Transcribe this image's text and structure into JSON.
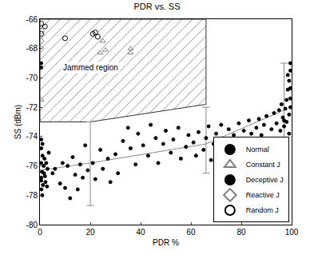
{
  "chart_data": {
    "type": "scatter",
    "title": "PDR vs. SS",
    "x_label": "PDR %",
    "y_label": "SS (dBm)",
    "xlim": [
      0,
      100
    ],
    "xticks": [
      0,
      20,
      40,
      60,
      80,
      100
    ],
    "ylim": [
      -80,
      -66
    ],
    "yticks": [
      -80,
      -78,
      -76,
      -74,
      -72,
      -70,
      -68,
      -66
    ],
    "grid": false,
    "legend": "bottom-right",
    "series": [
      {
        "name": "Normal",
        "color": "#000000",
        "marker": "circle",
        "x": [
          0.5,
          0.5,
          1,
          0.5,
          1.5,
          0.8,
          2,
          0.5,
          1.2,
          0.6,
          1.8,
          2.5,
          3,
          0.5,
          1,
          2.2,
          0.9,
          1.6,
          3.5,
          2.8,
          5,
          6,
          8,
          9,
          10,
          11,
          12,
          13,
          14,
          15,
          16,
          17,
          18,
          19,
          21,
          22,
          24,
          25,
          27,
          28,
          30,
          31,
          33,
          35,
          36,
          38,
          39,
          41,
          43,
          44,
          46,
          47,
          49,
          50,
          52,
          53,
          55,
          56,
          58,
          59,
          61,
          62,
          63,
          65,
          66,
          67,
          68,
          69,
          70,
          71,
          72,
          73,
          74,
          75,
          76,
          77,
          78,
          79,
          80,
          81,
          82,
          83,
          84,
          85,
          86,
          87,
          88,
          89,
          90,
          92,
          93,
          94,
          95,
          95.5,
          96,
          96.5,
          97,
          97.5,
          98,
          98,
          98.5,
          99,
          99,
          99.5,
          99.5,
          99.5,
          99.5,
          99,
          97,
          99.5,
          98.5
        ],
        "y": [
          -74.2,
          -74.8,
          -75.3,
          -75.8,
          -76,
          -76.4,
          -76.7,
          -77,
          -77.3,
          -77.6,
          -75.5,
          -75.8,
          -76.2,
          -76.8,
          -74.5,
          -77.1,
          -78,
          -76.5,
          -75.1,
          -77.4,
          -76.5,
          -76.2,
          -77.2,
          -75.8,
          -77.5,
          -76,
          -78.2,
          -75.4,
          -76.6,
          -77.6,
          -75.9,
          -76.8,
          -74.6,
          -76.3,
          -75.8,
          -76.9,
          -74.9,
          -76.2,
          -75.5,
          -77.1,
          -75.2,
          -76.5,
          -74.3,
          -73.4,
          -74.8,
          -75.9,
          -73.8,
          -74.6,
          -75.3,
          -73.2,
          -74.1,
          -75.8,
          -74.5,
          -73.6,
          -75.1,
          -74.2,
          -73.4,
          -75.5,
          -74.7,
          -73.9,
          -74.4,
          -75.3,
          -73.7,
          -74.9,
          -74.1,
          -73.3,
          -75.6,
          -74.5,
          -73.8,
          -74.8,
          -73.2,
          -74.9,
          -74.3,
          -73.5,
          -74.6,
          -73.9,
          -74.9,
          -73.1,
          -74.2,
          -73.6,
          -74.5,
          -72.9,
          -73.8,
          -74.3,
          -73.4,
          -72.8,
          -73.9,
          -73.2,
          -72.6,
          -73.5,
          -72.4,
          -73.1,
          -72.2,
          -73.6,
          -71.8,
          -72.7,
          -73.3,
          -72.1,
          -71.5,
          -73,
          -70.8,
          -72.5,
          -70.2,
          -71.4,
          -69.5,
          -70.7,
          -69,
          -73.8,
          -72.9,
          -72,
          -69.8
        ]
      },
      {
        "name": "Constant J",
        "color": "#808080",
        "marker": "triangle-up-open",
        "x": [
          0.5,
          25,
          24,
          26,
          36,
          36
        ],
        "y": [
          -71.5,
          -67.5,
          -68.3,
          -68.1,
          -68,
          -68.3
        ]
      },
      {
        "name": "Deceptive J",
        "color": "#000000",
        "marker": "circle",
        "x": [
          0.5,
          0.5
        ],
        "y": [
          -69,
          -69.3
        ]
      },
      {
        "name": "Reactive J",
        "color": "#808080",
        "marker": "diamond-open",
        "x": [
          0.5,
          0.5,
          0.5
        ],
        "y": [
          -66.8,
          -67.5,
          -68
        ]
      },
      {
        "name": "Random J",
        "color": "#000000",
        "marker": "circle-open",
        "x": [
          0.5,
          2,
          0.5,
          10,
          22,
          21,
          23
        ],
        "y": [
          -66.3,
          -66.5,
          -67,
          -67.3,
          -66.9,
          -67,
          -67.2
        ]
      }
    ],
    "jammed_region": {
      "x": [
        0,
        20,
        66,
        66,
        0,
        0
      ],
      "y": [
        -73,
        -73,
        -71.8,
        -66,
        -66,
        -73
      ]
    },
    "fit_line": {
      "x": [
        0,
        20,
        66,
        97
      ],
      "y": [
        -76.3,
        -75.8,
        -74.5,
        -72.2
      ]
    },
    "error_bars": [
      {
        "x": 20,
        "low": -78.7,
        "high": -73
      },
      {
        "x": 66,
        "low": -76.5,
        "high": -72
      },
      {
        "x": 97,
        "low": -74.3,
        "high": -69
      }
    ],
    "annotations": [
      {
        "text": "Jammed region",
        "x": 20,
        "y": -69.3
      }
    ]
  }
}
